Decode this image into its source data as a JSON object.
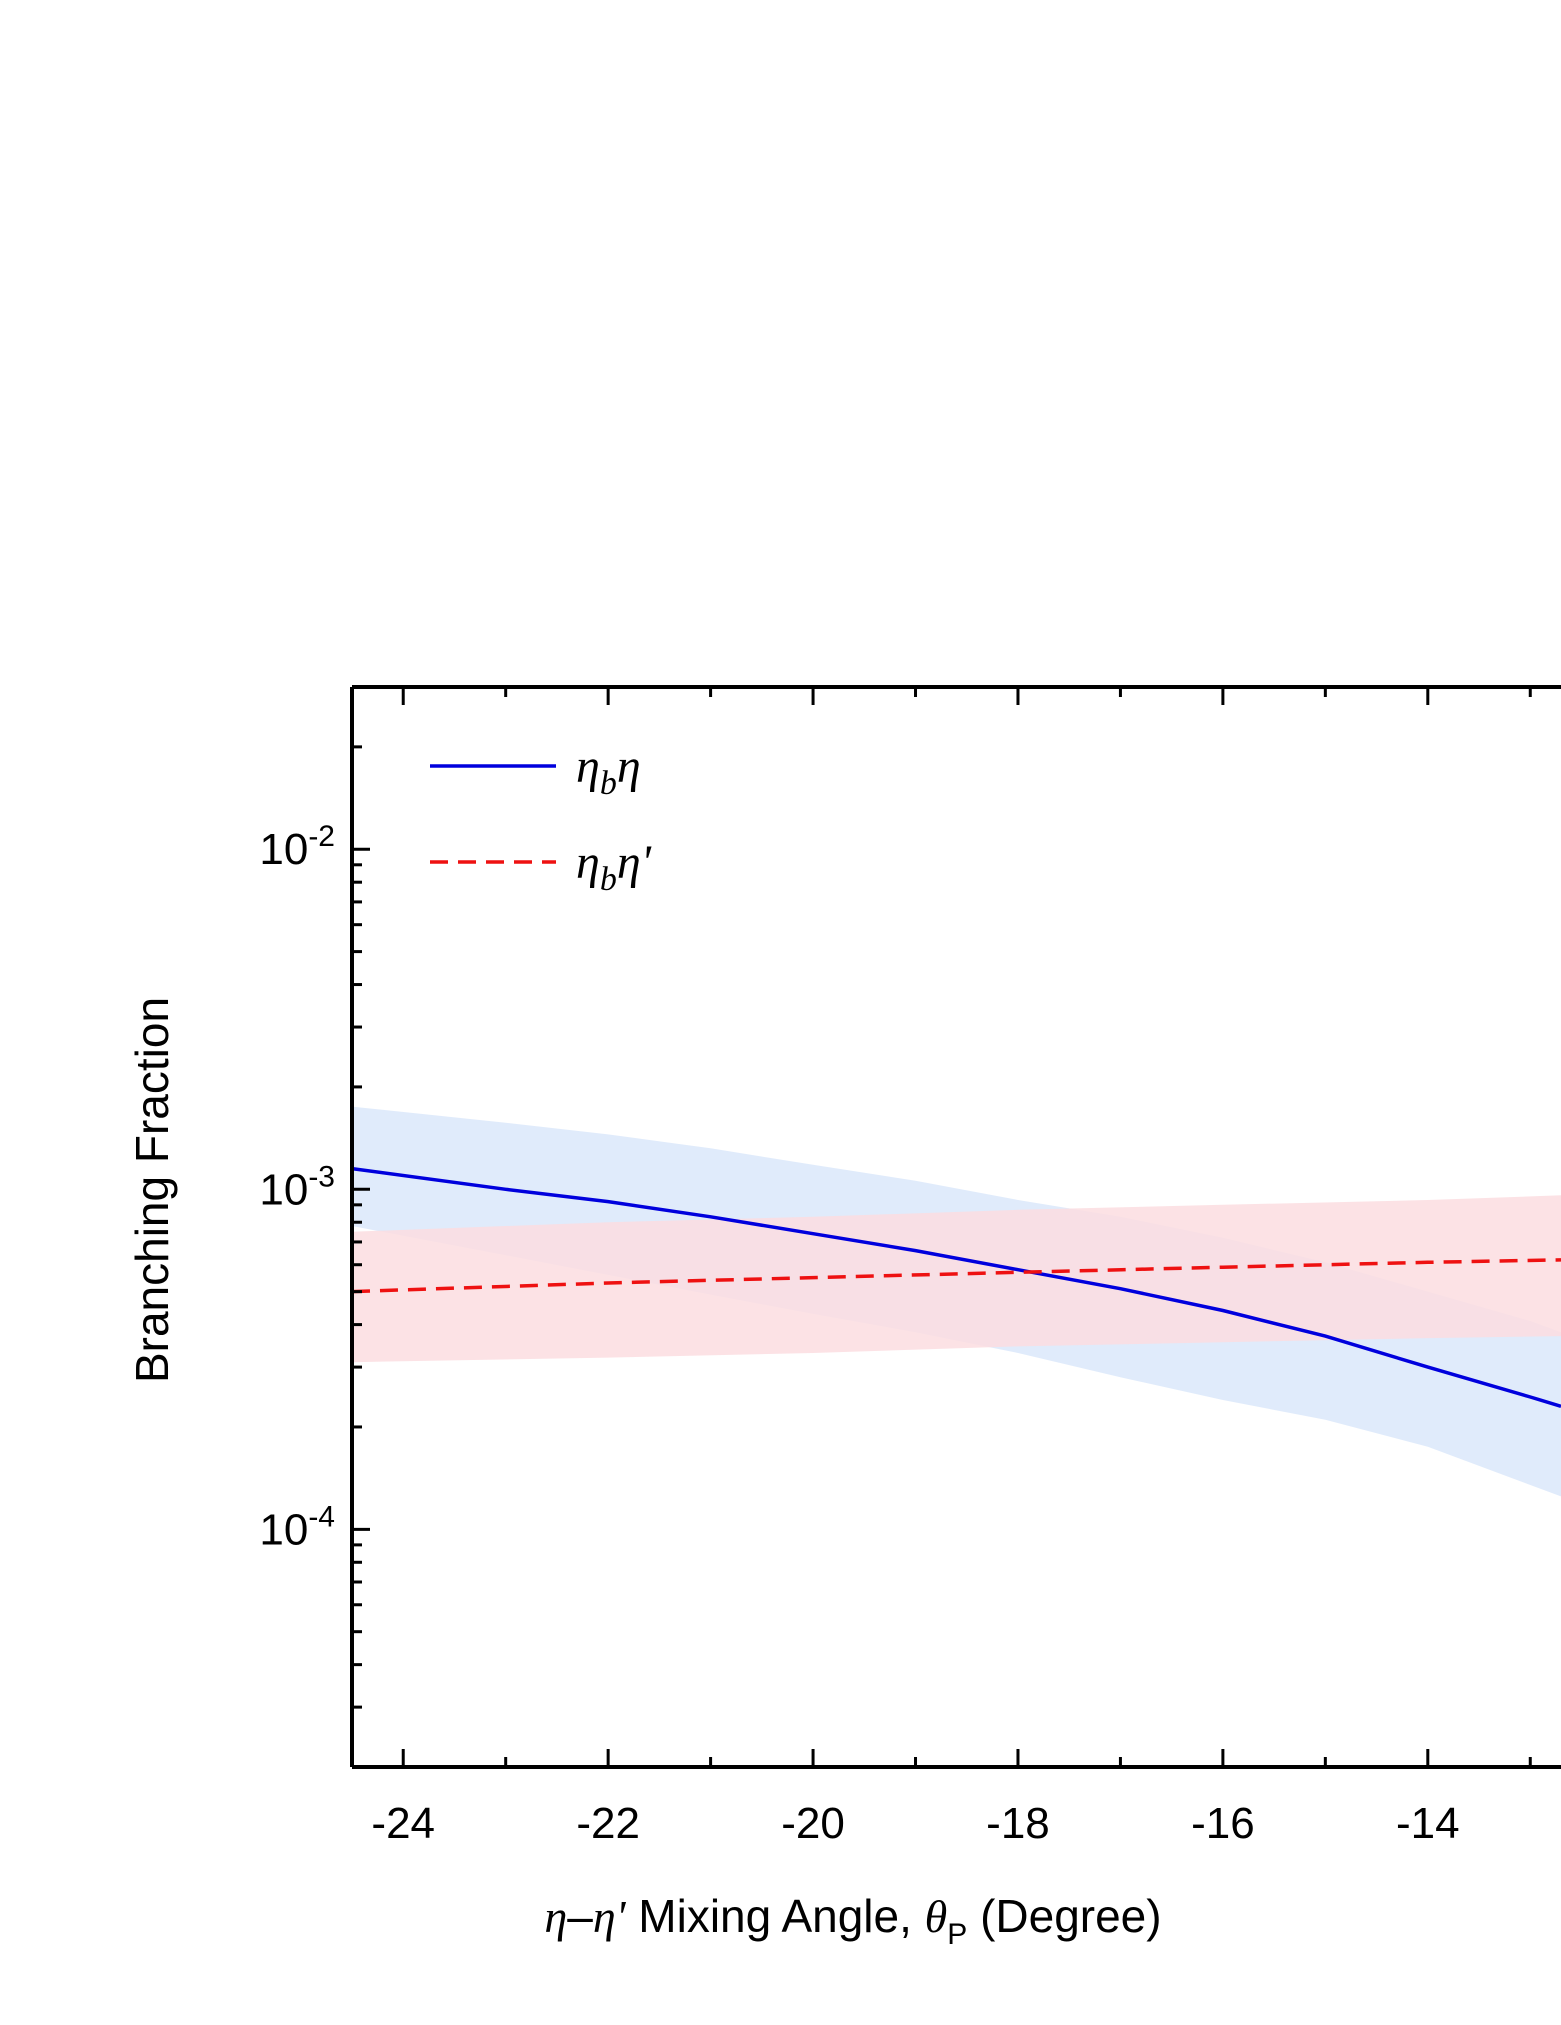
{
  "chart_data": {
    "type": "line",
    "xlabel": "η–η' Mixing Angle,  θP (Degree)",
    "xlabel_parts": {
      "eta": "η",
      "dash": "–",
      "eta_prime": "η'",
      "text": " Mixing Angle,  ",
      "theta": "θ",
      "theta_sub": "P",
      "unit": " (Degree)"
    },
    "ylabel": "Branching Fraction",
    "xlim": [
      -24.5,
      -12.7
    ],
    "ylim": [
      2e-05,
      0.03
    ],
    "yscale": "log",
    "x_ticks": [
      "-24",
      "-22",
      "-20",
      "-18",
      "-16",
      "-14"
    ],
    "y_ticks": [
      {
        "base": "10",
        "exp": "-2",
        "value": 0.01
      },
      {
        "base": "10",
        "exp": "-3",
        "value": 0.001
      },
      {
        "base": "10",
        "exp": "-4",
        "value": 0.0001
      }
    ],
    "legend_position": "top-left",
    "series": [
      {
        "name": "ηbη",
        "legend": {
          "main": "η",
          "sub": "b",
          "second": "η"
        },
        "color": "#0000dd",
        "style": "solid",
        "band_color": "#dbe8fa",
        "x": [
          -24.5,
          -23,
          -22,
          -21,
          -20,
          -19,
          -18,
          -17,
          -16,
          -15,
          -14,
          -13,
          -12.7
        ],
        "y": [
          0.00115,
          0.001,
          0.00092,
          0.00083,
          0.00074,
          0.00066,
          0.00058,
          0.00051,
          0.00044,
          0.00037,
          0.0003,
          0.000245,
          0.00023
        ],
        "upper": [
          0.00175,
          0.00157,
          0.00145,
          0.00132,
          0.00118,
          0.00106,
          0.00093,
          0.00083,
          0.00072,
          0.00061,
          0.0005,
          0.00041,
          0.00038
        ],
        "lower": [
          0.00078,
          0.00064,
          0.00056,
          0.00049,
          0.00043,
          0.00038,
          0.00033,
          0.00028,
          0.00024,
          0.00021,
          0.000175,
          0.000135,
          0.000125
        ]
      },
      {
        "name": "ηbη'",
        "legend": {
          "main": "η",
          "sub": "b",
          "second": "η'"
        },
        "color": "#ee1111",
        "style": "dashed",
        "band_color": "#fbdde0",
        "x": [
          -24.5,
          -22,
          -20,
          -18,
          -16,
          -14,
          -12.7
        ],
        "y": [
          0.0005,
          0.00053,
          0.00055,
          0.00057,
          0.00059,
          0.00061,
          0.00062
        ],
        "upper": [
          0.00075,
          0.0008,
          0.00083,
          0.00087,
          0.0009,
          0.00093,
          0.00096
        ],
        "lower": [
          0.00031,
          0.00032,
          0.00033,
          0.000345,
          0.000355,
          0.000365,
          0.00037
        ]
      }
    ]
  }
}
